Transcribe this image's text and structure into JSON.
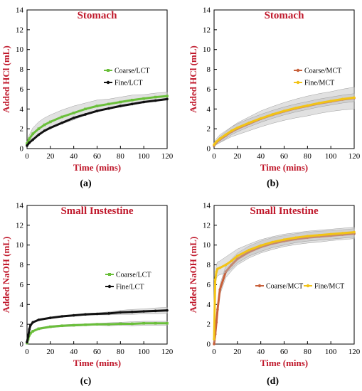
{
  "colors": {
    "title_text": "#c0192c",
    "axis_label_text": "#c0192c",
    "coarse_lct": "#6abf3a",
    "fine_lct": "#111111",
    "coarse_mct": "#c8603a",
    "fine_mct": "#f2c316",
    "error_band": "#bdbdbd"
  },
  "chart_data": [
    {
      "panel_label": "(a)",
      "type": "line",
      "title": "Stomach",
      "xlabel": "Time (mins)",
      "ylabel": "Added HCl (mL)",
      "xlim": [
        0,
        120
      ],
      "ylim": [
        0,
        14
      ],
      "xticks": [
        0,
        20,
        40,
        60,
        80,
        100,
        120
      ],
      "yticks": [
        0,
        2,
        4,
        6,
        8,
        10,
        12,
        14
      ],
      "legend_position": "center-right",
      "x": [
        0,
        2,
        5,
        10,
        15,
        20,
        30,
        40,
        50,
        60,
        70,
        80,
        90,
        100,
        110,
        120
      ],
      "series": [
        {
          "name": "Coarse/LCT",
          "color_key": "coarse_lct",
          "marker": "square",
          "values": [
            0.5,
            1.0,
            1.5,
            2.0,
            2.4,
            2.7,
            3.2,
            3.6,
            4.0,
            4.3,
            4.5,
            4.7,
            4.9,
            5.05,
            5.2,
            5.3
          ],
          "error": [
            0.2,
            0.4,
            0.6,
            0.7,
            0.7,
            0.7,
            0.7,
            0.7,
            0.6,
            0.6,
            0.5,
            0.5,
            0.5,
            0.4,
            0.4,
            0.4
          ]
        },
        {
          "name": "Fine/LCT",
          "color_key": "fine_lct",
          "marker": "circle",
          "values": [
            0.3,
            0.6,
            0.9,
            1.4,
            1.8,
            2.1,
            2.6,
            3.1,
            3.45,
            3.8,
            4.05,
            4.3,
            4.5,
            4.7,
            4.85,
            5.0
          ],
          "error": [
            0.0,
            0.0,
            0.0,
            0.0,
            0.0,
            0.0,
            0.0,
            0.0,
            0.0,
            0.0,
            0.0,
            0.0,
            0.0,
            0.0,
            0.0,
            0.0
          ]
        }
      ]
    },
    {
      "panel_label": "(b)",
      "type": "line",
      "title": "Stomach",
      "xlabel": "Time (mins)",
      "ylabel": "Added HCl (mL)",
      "xlim": [
        0,
        120
      ],
      "ylim": [
        0,
        14
      ],
      "xticks": [
        0,
        20,
        40,
        60,
        80,
        100,
        120
      ],
      "yticks": [
        0,
        2,
        4,
        6,
        8,
        10,
        12,
        14
      ],
      "legend_position": "center-right",
      "x": [
        0,
        2,
        5,
        10,
        15,
        20,
        30,
        40,
        50,
        60,
        70,
        80,
        90,
        100,
        110,
        120
      ],
      "series": [
        {
          "name": "Coarse/MCT",
          "color_key": "coarse_mct",
          "marker": "circle",
          "values": [
            0.3,
            0.6,
            0.9,
            1.3,
            1.7,
            2.0,
            2.5,
            3.0,
            3.4,
            3.75,
            4.05,
            4.3,
            4.55,
            4.75,
            4.95,
            5.1
          ],
          "error": [
            0.1,
            0.2,
            0.3,
            0.4,
            0.5,
            0.6,
            0.7,
            0.8,
            0.85,
            0.9,
            0.95,
            1.0,
            1.0,
            1.0,
            1.05,
            1.1
          ]
        },
        {
          "name": "Fine/MCT",
          "color_key": "fine_mct",
          "marker": "circle",
          "values": [
            0.4,
            0.7,
            1.0,
            1.4,
            1.8,
            2.1,
            2.6,
            3.05,
            3.45,
            3.8,
            4.1,
            4.35,
            4.6,
            4.8,
            5.0,
            5.15
          ],
          "error": [
            0.2,
            0.3,
            0.4,
            0.4,
            0.4,
            0.4,
            0.4,
            0.4,
            0.4,
            0.4,
            0.4,
            0.4,
            0.4,
            0.4,
            0.4,
            0.4
          ]
        }
      ]
    },
    {
      "panel_label": "(c)",
      "type": "line",
      "title": "Small Instestine",
      "xlabel": "Time (mins)",
      "ylabel": "Added NaOH (mL)",
      "xlim": [
        0,
        120
      ],
      "ylim": [
        0,
        14
      ],
      "xticks": [
        0,
        20,
        40,
        60,
        80,
        100,
        120
      ],
      "yticks": [
        0,
        2,
        4,
        6,
        8,
        10,
        12,
        14
      ],
      "legend_position": "center-right",
      "x": [
        0,
        1,
        2,
        3,
        5,
        10,
        20,
        30,
        40,
        50,
        60,
        70,
        80,
        90,
        100,
        110,
        120
      ],
      "series": [
        {
          "name": "Coarse/LCT",
          "color_key": "coarse_lct",
          "marker": "square",
          "values": [
            0.1,
            0.5,
            0.9,
            1.1,
            1.3,
            1.55,
            1.75,
            1.85,
            1.9,
            1.95,
            2.0,
            2.0,
            2.05,
            2.05,
            2.1,
            2.1,
            2.1
          ],
          "error": [
            0.0,
            0.0,
            0.0,
            0.0,
            0.1,
            0.1,
            0.1,
            0.1,
            0.1,
            0.1,
            0.1,
            0.15,
            0.15,
            0.2,
            0.2,
            0.2,
            0.2
          ]
        },
        {
          "name": "Fine/LCT",
          "color_key": "fine_lct",
          "marker": "circle",
          "values": [
            0.2,
            0.8,
            1.5,
            1.9,
            2.2,
            2.45,
            2.65,
            2.8,
            2.9,
            3.0,
            3.05,
            3.1,
            3.2,
            3.25,
            3.3,
            3.35,
            3.4
          ],
          "error": [
            0.0,
            0.0,
            0.0,
            0.0,
            0.0,
            0.0,
            0.05,
            0.05,
            0.05,
            0.1,
            0.1,
            0.15,
            0.2,
            0.25,
            0.25,
            0.3,
            0.3
          ]
        }
      ]
    },
    {
      "panel_label": "(d)",
      "type": "line",
      "title": "Small Intestine",
      "xlabel": "Time (mins)",
      "ylabel": "Added NaOH (mL)",
      "xlim": [
        0,
        120
      ],
      "ylim": [
        0,
        14
      ],
      "xticks": [
        0,
        20,
        40,
        60,
        80,
        100,
        120
      ],
      "yticks": [
        0,
        2,
        4,
        6,
        8,
        10,
        12,
        14
      ],
      "legend_position": "center-right",
      "x": [
        0,
        1,
        2,
        3,
        5,
        10,
        15,
        20,
        30,
        40,
        50,
        60,
        70,
        80,
        90,
        100,
        110,
        120
      ],
      "series": [
        {
          "name": "Coarse/MCT",
          "color_key": "coarse_mct",
          "marker": "circle",
          "values": [
            0.0,
            1.0,
            2.2,
            3.5,
            5.5,
            7.3,
            8.0,
            8.6,
            9.3,
            9.8,
            10.15,
            10.4,
            10.6,
            10.75,
            10.85,
            10.95,
            11.05,
            11.15
          ],
          "error": [
            0.0,
            0.2,
            0.3,
            0.4,
            0.5,
            0.6,
            0.6,
            0.6,
            0.6,
            0.6,
            0.6,
            0.55,
            0.55,
            0.55,
            0.55,
            0.5,
            0.5,
            0.5
          ]
        },
        {
          "name": "Fine/MCT",
          "color_key": "fine_mct",
          "marker": "circle",
          "values": [
            0.5,
            6.5,
            7.3,
            7.6,
            7.7,
            8.0,
            8.4,
            8.9,
            9.5,
            9.95,
            10.3,
            10.55,
            10.75,
            10.9,
            11.0,
            11.1,
            11.2,
            11.3
          ],
          "error": [
            0.3,
            0.6,
            0.7,
            0.7,
            0.7,
            0.8,
            0.8,
            0.7,
            0.6,
            0.6,
            0.55,
            0.55,
            0.5,
            0.5,
            0.5,
            0.5,
            0.5,
            0.5
          ]
        }
      ]
    }
  ]
}
